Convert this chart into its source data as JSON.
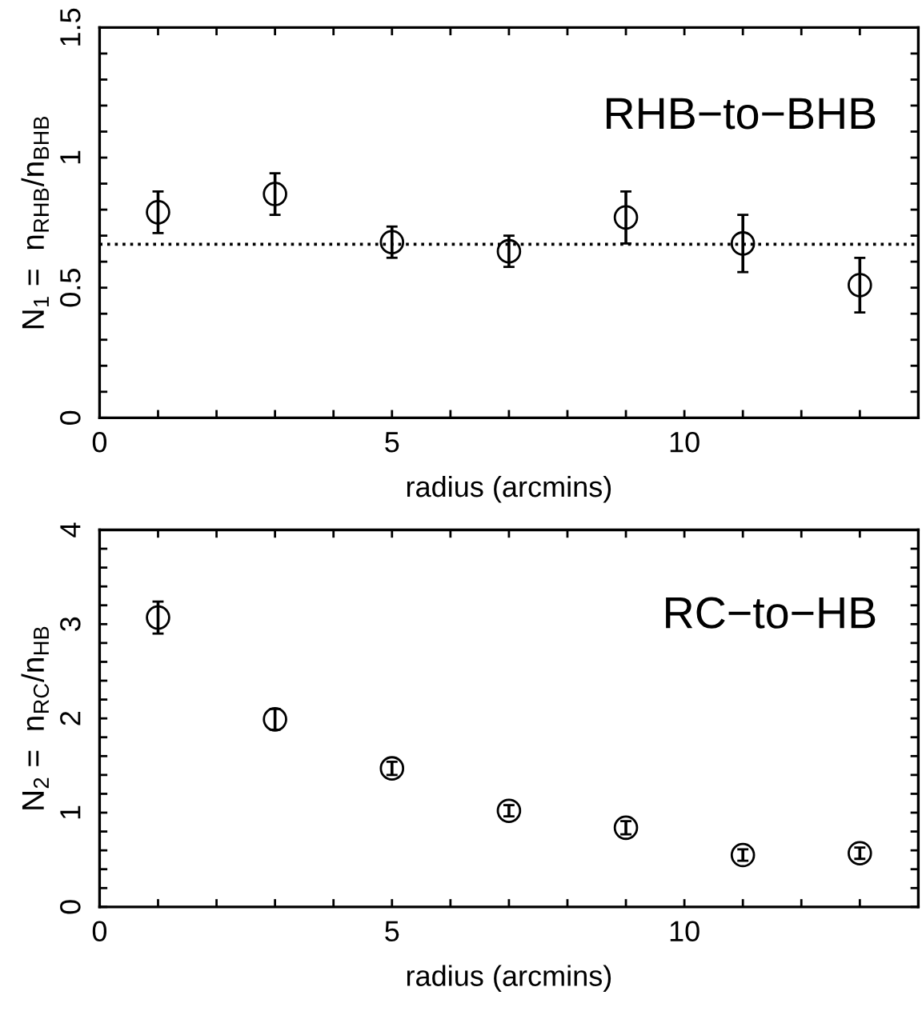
{
  "chart_data": [
    {
      "type": "scatter",
      "xlabel": "radius (arcmins)",
      "ylabel": "N$_{1}$ =  n$_{RHB}$/n$_{BHB}$",
      "annotations": [
        "RHB−to−BHB"
      ],
      "x": [
        1,
        3,
        5,
        7,
        9,
        11,
        13
      ],
      "series": [
        {
          "color": "#000000",
          "values": [
            0.79,
            0.86,
            0.675,
            0.64,
            0.77,
            0.67,
            0.51
          ],
          "errors": [
            0.08,
            0.08,
            0.06,
            0.06,
            0.1,
            0.11,
            0.105
          ]
        }
      ],
      "marker": "circle",
      "grid": false,
      "xlim": [
        0,
        14
      ],
      "ylim": [
        0,
        1.5
      ],
      "xticks": [
        0,
        {
          "value": 1,
          "label": null
        },
        {
          "value": 2,
          "label": null
        },
        {
          "value": 3,
          "label": null
        },
        {
          "value": 4,
          "label": null
        },
        5,
        {
          "value": 6,
          "label": null
        },
        {
          "value": 7,
          "label": null
        },
        {
          "value": 8,
          "label": null
        },
        {
          "value": 9,
          "label": null
        },
        10,
        {
          "value": 11,
          "label": null
        },
        {
          "value": 12,
          "label": null
        },
        {
          "value": 13,
          "label": null
        }
      ],
      "yticks": [
        0,
        {
          "value": 0.1,
          "label": null
        },
        {
          "value": 0.2,
          "label": null
        },
        {
          "value": 0.3,
          "label": null
        },
        {
          "value": 0.4,
          "label": null
        },
        0.5,
        {
          "value": 0.6,
          "label": null
        },
        {
          "value": 0.7,
          "label": null
        },
        {
          "value": 0.8,
          "label": null
        },
        {
          "value": 0.9,
          "label": null
        },
        1,
        {
          "value": 1.1,
          "label": null
        },
        {
          "value": 1.2,
          "label": null
        },
        {
          "value": 1.3,
          "label": null
        },
        {
          "value": 1.4,
          "label": null
        },
        1.5
      ],
      "ref_lines": [
        {
          "axis": "y",
          "value": 0.667,
          "line_style": "dotted",
          "color": "#000000"
        }
      ]
    },
    {
      "type": "scatter",
      "xlabel": "radius (arcmins)",
      "ylabel": "N$_{2}$ =  n$_{RC}$/n$_{HB}$",
      "annotations": [
        "RC−to−HB"
      ],
      "x": [
        1,
        3,
        5,
        7,
        9,
        11,
        13
      ],
      "series": [
        {
          "color": "#000000",
          "values": [
            3.07,
            1.99,
            1.47,
            1.02,
            0.84,
            0.55,
            0.57
          ],
          "errors": [
            0.17,
            0.11,
            0.07,
            0.06,
            0.07,
            0.06,
            0.06
          ]
        }
      ],
      "marker": "circle",
      "grid": false,
      "xlim": [
        0,
        14
      ],
      "ylim": [
        0,
        4
      ],
      "xticks": [
        0,
        {
          "value": 1,
          "label": null
        },
        {
          "value": 2,
          "label": null
        },
        {
          "value": 3,
          "label": null
        },
        {
          "value": 4,
          "label": null
        },
        5,
        {
          "value": 6,
          "label": null
        },
        {
          "value": 7,
          "label": null
        },
        {
          "value": 8,
          "label": null
        },
        {
          "value": 9,
          "label": null
        },
        10,
        {
          "value": 11,
          "label": null
        },
        {
          "value": 12,
          "label": null
        },
        {
          "value": 13,
          "label": null
        }
      ],
      "yticks": [
        0,
        {
          "value": 0.2,
          "label": null
        },
        {
          "value": 0.4,
          "label": null
        },
        {
          "value": 0.6,
          "label": null
        },
        {
          "value": 0.8,
          "label": null
        },
        1,
        {
          "value": 1.2,
          "label": null
        },
        {
          "value": 1.4,
          "label": null
        },
        {
          "value": 1.6,
          "label": null
        },
        {
          "value": 1.8,
          "label": null
        },
        2,
        {
          "value": 2.2,
          "label": null
        },
        {
          "value": 2.4,
          "label": null
        },
        {
          "value": 2.6,
          "label": null
        },
        {
          "value": 2.8,
          "label": null
        },
        3,
        {
          "value": 3.2,
          "label": null
        },
        {
          "value": 3.4,
          "label": null
        },
        {
          "value": 3.6,
          "label": null
        },
        {
          "value": 3.8,
          "label": null
        },
        4
      ]
    }
  ]
}
